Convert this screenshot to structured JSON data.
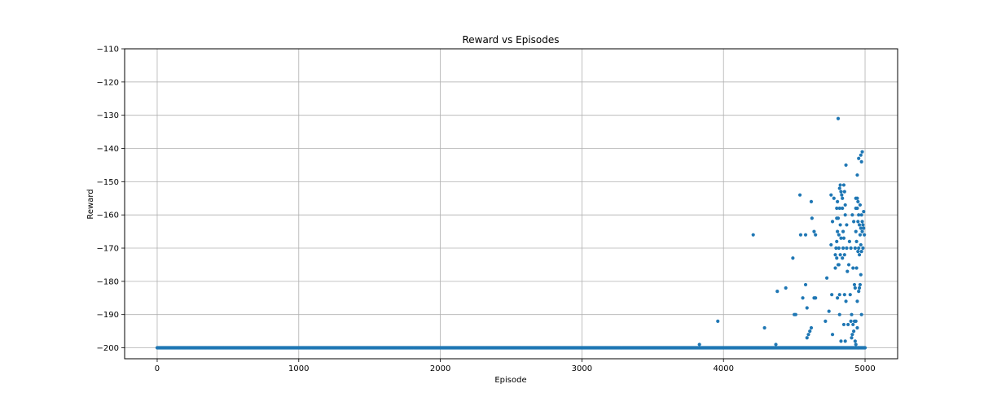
{
  "chart_data": {
    "type": "scatter",
    "title": "Reward vs Episodes",
    "xlabel": "Episode",
    "ylabel": "Reward",
    "xlim": [
      -230,
      5230
    ],
    "ylim": [
      -203.3,
      -110
    ],
    "xticks": [
      0,
      1000,
      2000,
      3000,
      4000,
      5000
    ],
    "xtick_labels": [
      "0",
      "1000",
      "2000",
      "3000",
      "4000",
      "5000"
    ],
    "yticks": [
      -200,
      -190,
      -180,
      -170,
      -160,
      -150,
      -140,
      -130,
      -120,
      -110
    ],
    "ytick_labels": [
      "−200",
      "−190",
      "−180",
      "−170",
      "−160",
      "−150",
      "−140",
      "−130",
      "−120",
      "−110"
    ],
    "grid": true,
    "marker_color": "#1f77b4",
    "baseline": {
      "y": -200,
      "x_start": 0,
      "x_end": 5000,
      "step": 5,
      "note_hidden": false
    },
    "series": [
      {
        "points": [
          [
            3830,
            -199
          ],
          [
            3960,
            -192
          ],
          [
            4210,
            -166
          ],
          [
            4290,
            -194
          ],
          [
            4370,
            -199
          ],
          [
            4380,
            -183
          ],
          [
            4440,
            -182
          ],
          [
            4490,
            -173
          ],
          [
            4500,
            -190
          ],
          [
            4510,
            -190
          ],
          [
            4540,
            -154
          ],
          [
            4545,
            -166
          ],
          [
            4560,
            -185
          ],
          [
            4580,
            -166
          ],
          [
            4580,
            -181
          ],
          [
            4590,
            -188
          ],
          [
            4590,
            -197
          ],
          [
            4600,
            -196
          ],
          [
            4610,
            -195
          ],
          [
            4620,
            -156
          ],
          [
            4620,
            -194
          ],
          [
            4625,
            -161
          ],
          [
            4640,
            -165
          ],
          [
            4640,
            -185
          ],
          [
            4650,
            -166
          ],
          [
            4650,
            -185
          ],
          [
            4720,
            -192
          ],
          [
            4730,
            -179
          ],
          [
            4745,
            -189
          ],
          [
            4760,
            -154
          ],
          [
            4760,
            -169
          ],
          [
            4765,
            -184
          ],
          [
            4770,
            -162
          ],
          [
            4770,
            -196
          ],
          [
            4780,
            -155
          ],
          [
            4790,
            -172
          ],
          [
            4790,
            -176
          ],
          [
            4795,
            -170
          ],
          [
            4800,
            -158
          ],
          [
            4800,
            -161
          ],
          [
            4800,
            -168
          ],
          [
            4800,
            -173
          ],
          [
            4805,
            -156
          ],
          [
            4805,
            -165
          ],
          [
            4805,
            -185
          ],
          [
            4810,
            -161
          ],
          [
            4810,
            -175
          ],
          [
            4810,
            -131
          ],
          [
            4815,
            -166
          ],
          [
            4815,
            -170
          ],
          [
            4815,
            -175
          ],
          [
            4820,
            -152
          ],
          [
            4820,
            -158
          ],
          [
            4820,
            -184
          ],
          [
            4820,
            -190
          ],
          [
            4825,
            -151
          ],
          [
            4825,
            -163
          ],
          [
            4825,
            -172
          ],
          [
            4830,
            -153
          ],
          [
            4830,
            -167
          ],
          [
            4830,
            -198
          ],
          [
            4835,
            -154
          ],
          [
            4840,
            -155
          ],
          [
            4840,
            -158
          ],
          [
            4840,
            -173
          ],
          [
            4845,
            -165
          ],
          [
            4845,
            -170
          ],
          [
            4850,
            -151
          ],
          [
            4850,
            -167
          ],
          [
            4850,
            -193
          ],
          [
            4855,
            -153
          ],
          [
            4855,
            -172
          ],
          [
            4855,
            -184
          ],
          [
            4860,
            -157
          ],
          [
            4860,
            -160
          ],
          [
            4860,
            -198
          ],
          [
            4865,
            -145
          ],
          [
            4865,
            -186
          ],
          [
            4870,
            -163
          ],
          [
            4870,
            -170
          ],
          [
            4875,
            -177
          ],
          [
            4880,
            -193
          ],
          [
            4885,
            -175
          ],
          [
            4890,
            -168
          ],
          [
            4895,
            -184
          ],
          [
            4900,
            -170
          ],
          [
            4900,
            -192
          ],
          [
            4905,
            -197
          ],
          [
            4905,
            -190
          ],
          [
            4910,
            -160
          ],
          [
            4910,
            -196
          ],
          [
            4915,
            -193
          ],
          [
            4915,
            -176
          ],
          [
            4920,
            -162
          ],
          [
            4920,
            -195
          ],
          [
            4925,
            -181
          ],
          [
            4925,
            -192
          ],
          [
            4930,
            -170
          ],
          [
            4930,
            -182
          ],
          [
            4930,
            -198
          ],
          [
            4935,
            -155
          ],
          [
            4935,
            -158
          ],
          [
            4935,
            -165
          ],
          [
            4935,
            -192
          ],
          [
            4935,
            -199
          ],
          [
            4940,
            -168
          ],
          [
            4940,
            -176
          ],
          [
            4945,
            -148
          ],
          [
            4945,
            -155
          ],
          [
            4945,
            -158
          ],
          [
            4945,
            -186
          ],
          [
            4945,
            -194
          ],
          [
            4950,
            -156
          ],
          [
            4950,
            -162
          ],
          [
            4950,
            -171
          ],
          [
            4950,
            -200
          ],
          [
            4955,
            -143
          ],
          [
            4955,
            -160
          ],
          [
            4955,
            -170
          ],
          [
            4955,
            -183
          ],
          [
            4960,
            -163
          ],
          [
            4960,
            -172
          ],
          [
            4960,
            -182
          ],
          [
            4965,
            -157
          ],
          [
            4965,
            -166
          ],
          [
            4965,
            -181
          ],
          [
            4970,
            -142
          ],
          [
            4970,
            -164
          ],
          [
            4970,
            -169
          ],
          [
            4970,
            -178
          ],
          [
            4975,
            -144
          ],
          [
            4975,
            -160
          ],
          [
            4975,
            -171
          ],
          [
            4975,
            -190
          ],
          [
            4980,
            -141
          ],
          [
            4980,
            -162
          ],
          [
            4980,
            -165
          ],
          [
            4985,
            -163
          ],
          [
            4985,
            -170
          ],
          [
            4990,
            -159
          ],
          [
            4990,
            -164
          ],
          [
            4995,
            -166
          ]
        ]
      }
    ]
  }
}
